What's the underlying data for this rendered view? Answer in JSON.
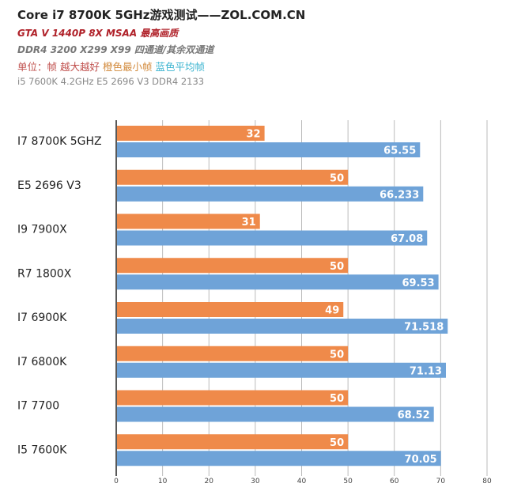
{
  "header": {
    "title": "Core i7 8700K 5GHz游戏测试——ZOL.COM.CN",
    "subtitle": "GTA V 1440P 8X MSAA 最高画质",
    "memory": "DDR4 3200  X299 X99 四通道/其余双通道",
    "unit_prefix": "单位：帧 越大越好",
    "legend_min": "橙色最小帧",
    "legend_avg": "蓝色平均帧",
    "note": "i5 7600K 4.2GHz E5 2696 V3 DDR4 2133"
  },
  "chart_data": {
    "type": "bar",
    "orientation": "horizontal",
    "categories": [
      "I7 8700K 5GHZ",
      "E5 2696 V3",
      "I9 7900X",
      "R7 1800X",
      "I7 6900K",
      "I7 6800K",
      "I7 7700",
      "I5 7600K"
    ],
    "series": [
      {
        "name": "橙色最小帧",
        "color": "#ef8a4a",
        "values": [
          32,
          50,
          31,
          50,
          49,
          50,
          50,
          50
        ]
      },
      {
        "name": "蓝色平均帧",
        "color": "#6fa3d8",
        "values": [
          65.55,
          66.233,
          67.08,
          69.53,
          71.518,
          71.13,
          68.52,
          70.05
        ]
      }
    ],
    "xlim": [
      0,
      80
    ],
    "xticks": [
      0,
      10,
      20,
      30,
      40,
      50,
      60,
      70,
      80
    ],
    "grid": true
  }
}
